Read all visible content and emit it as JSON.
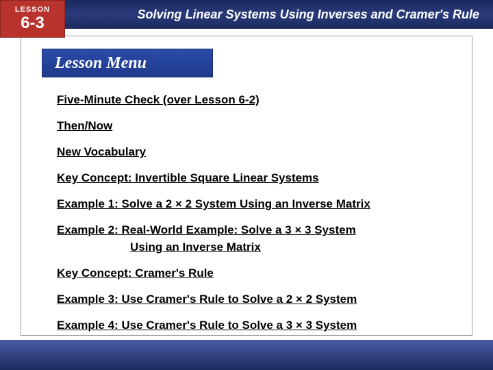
{
  "header": {
    "lesson_label": "LESSON",
    "lesson_number": "6-3",
    "title": "Solving Linear Systems Using Inverses and Cramer's Rule"
  },
  "menu_title": "Lesson Menu",
  "menu_items": [
    {
      "text": "Five-Minute Check (over Lesson 6-2)"
    },
    {
      "text": "Then/Now"
    },
    {
      "text": "New Vocabulary"
    },
    {
      "text": "Key Concept: Invertible Square Linear Systems"
    },
    {
      "text": "Example 1:  Solve a 2 × 2 System Using an Inverse Matrix"
    },
    {
      "text": "Example 2:  Real-World Example: Solve a 3 × 3 System"
    },
    {
      "text": "Using an Inverse Matrix",
      "indent": true
    },
    {
      "text": "Key Concept: Cramer's Rule"
    },
    {
      "text": "Example 3:  Use Cramer's Rule to Solve a 2 × 2 System"
    },
    {
      "text": "Example 4:  Use Cramer's Rule to Solve a 3 × 3 System"
    }
  ],
  "colors": {
    "header_bg": "#1a2a5c",
    "badge_bg": "#b8332d",
    "menu_label_bg": "#1e3a8a",
    "link_color": "#000000",
    "footer_accent": "#8a7040"
  }
}
